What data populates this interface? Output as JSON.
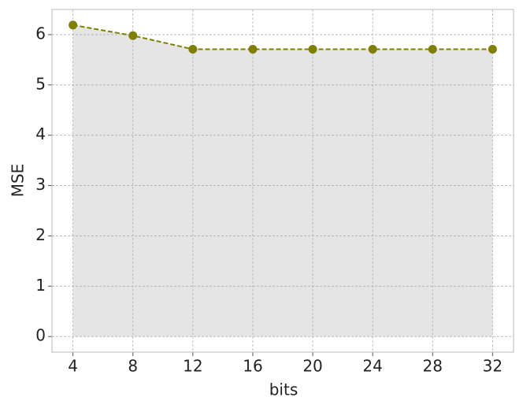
{
  "chart_data": {
    "type": "line",
    "x_label": "bits",
    "y_label": "MSE",
    "x": [
      4,
      8,
      12,
      16,
      20,
      24,
      28,
      32
    ],
    "values": [
      6.19,
      5.98,
      5.71,
      5.71,
      5.71,
      5.71,
      5.71,
      5.71
    ],
    "color": "#808000",
    "fill_color": "#e5e5e5",
    "line_style": "dashed",
    "xlim": [
      2.6,
      33.4
    ],
    "ylim": [
      -0.31,
      6.5
    ],
    "xticks": [
      4,
      8,
      12,
      16,
      20,
      24,
      28,
      32
    ],
    "yticks": [
      0,
      1,
      2,
      3,
      4,
      5,
      6
    ],
    "grid": true
  }
}
